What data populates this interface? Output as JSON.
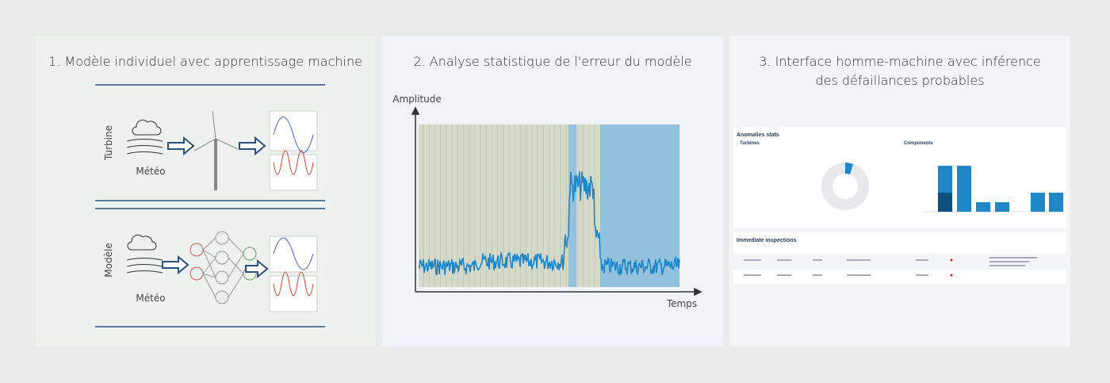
{
  "panels": [
    {
      "title": "1. Modèle individuel avec apprentissage machine",
      "rows": [
        {
          "side_label": "Turbine",
          "input_label": "Météo"
        },
        {
          "side_label": "Modèle",
          "input_label": "Météo"
        }
      ]
    },
    {
      "title": "2. Analyse statistique de l'erreur du modèle",
      "y_axis_label": "Amplitude",
      "x_axis_label": "Temps"
    },
    {
      "title_lines": [
        "3. Interface homme-machine avec inférence",
        "des défaillances probables"
      ],
      "dashboard": {
        "stats_title": "Anomalies stats",
        "left_heading": "Turbines",
        "right_heading": "Components",
        "inspections_title": "Immediate inspections"
      }
    }
  ]
}
